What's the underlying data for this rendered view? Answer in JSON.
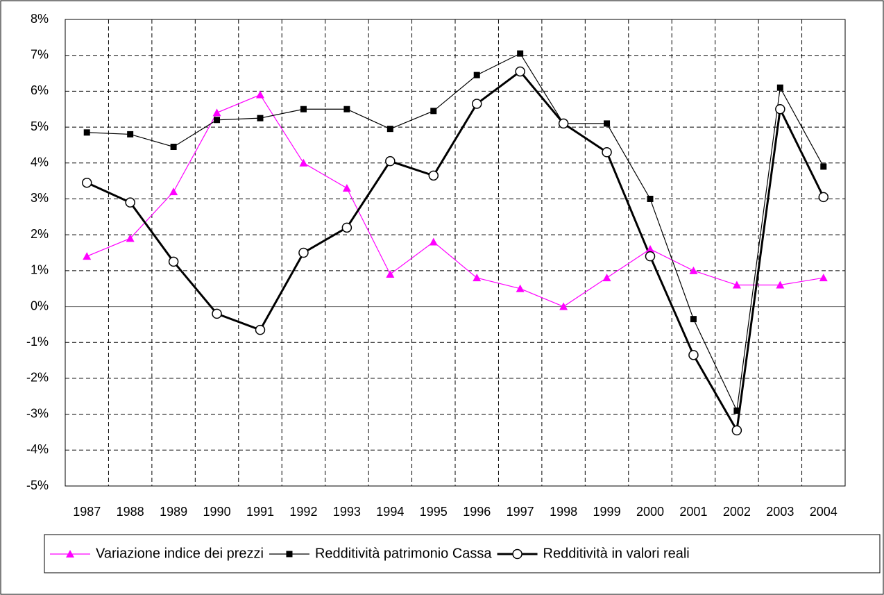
{
  "chart_data": {
    "type": "line",
    "categories": [
      "1987",
      "1988",
      "1989",
      "1990",
      "1991",
      "1992",
      "1993",
      "1994",
      "1995",
      "1996",
      "1997",
      "1998",
      "1999",
      "2000",
      "2001",
      "2002",
      "2003",
      "2004"
    ],
    "series": [
      {
        "name": "Variazione indice dei prezzi",
        "color": "#ff00ff",
        "marker": "triangle",
        "line_width": 1.2,
        "values": [
          1.4,
          1.9,
          3.2,
          5.4,
          5.9,
          4.0,
          3.3,
          0.9,
          1.8,
          0.8,
          0.5,
          0.0,
          0.8,
          1.6,
          1.0,
          0.6,
          0.6,
          0.8
        ]
      },
      {
        "name": "Redditività patrimonio Cassa",
        "color": "#000000",
        "marker": "square",
        "line_width": 1.2,
        "values": [
          4.85,
          4.8,
          4.45,
          5.2,
          5.25,
          5.5,
          5.5,
          4.95,
          5.45,
          6.45,
          7.05,
          5.1,
          5.1,
          3.0,
          -0.35,
          -2.9,
          6.1,
          3.9
        ]
      },
      {
        "name": "Redditività in valori reali",
        "color": "#000000",
        "marker": "circle",
        "line_width": 3,
        "values": [
          3.45,
          2.9,
          1.25,
          -0.2,
          -0.65,
          1.5,
          2.2,
          4.05,
          3.65,
          5.65,
          6.55,
          5.1,
          4.3,
          1.4,
          -1.35,
          -3.45,
          5.5,
          3.05
        ]
      }
    ],
    "ylim": [
      -5,
      8
    ],
    "yticks": [
      {
        "value": -5,
        "label": "-5%"
      },
      {
        "value": -4,
        "label": "-4%"
      },
      {
        "value": -3,
        "label": "-3%"
      },
      {
        "value": -2,
        "label": "-2%"
      },
      {
        "value": -1,
        "label": "-1%"
      },
      {
        "value": 0,
        "label": "0%"
      },
      {
        "value": 1,
        "label": "1%"
      },
      {
        "value": 2,
        "label": "2%"
      },
      {
        "value": 3,
        "label": "3%"
      },
      {
        "value": 4,
        "label": "4%"
      },
      {
        "value": 5,
        "label": "5%"
      },
      {
        "value": 6,
        "label": "6%"
      },
      {
        "value": 7,
        "label": "7%"
      },
      {
        "value": 8,
        "label": "8%"
      }
    ],
    "grid": true,
    "legend": "bottom"
  }
}
